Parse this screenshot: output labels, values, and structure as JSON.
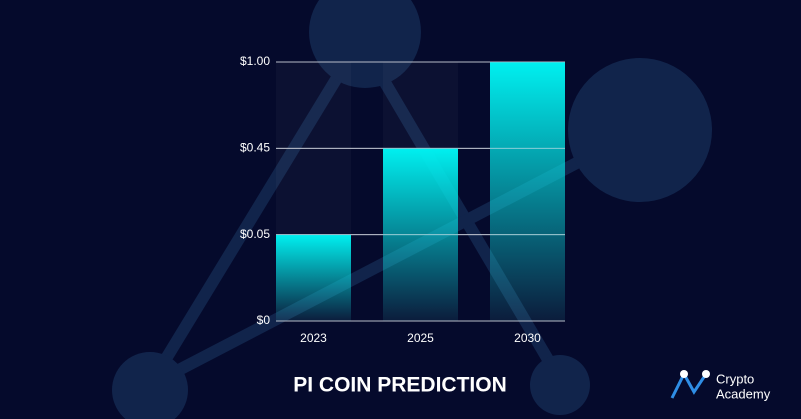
{
  "chart_data": {
    "type": "bar",
    "title": "PI COIN PREDICTION",
    "categories": [
      "2023",
      "2025",
      "2030"
    ],
    "values": [
      0.05,
      0.45,
      1.0
    ],
    "color": "#00f0f0",
    "ylim": [
      0,
      1.0
    ],
    "yticks": [
      {
        "value": 0,
        "label": "$0"
      },
      {
        "value": 0.05,
        "label": "$0.05"
      },
      {
        "value": 0.45,
        "label": "$0.45"
      },
      {
        "value": 1.0,
        "label": "$1.00"
      }
    ],
    "grid": true
  },
  "brand": [
    "Crypto",
    "Academy"
  ]
}
